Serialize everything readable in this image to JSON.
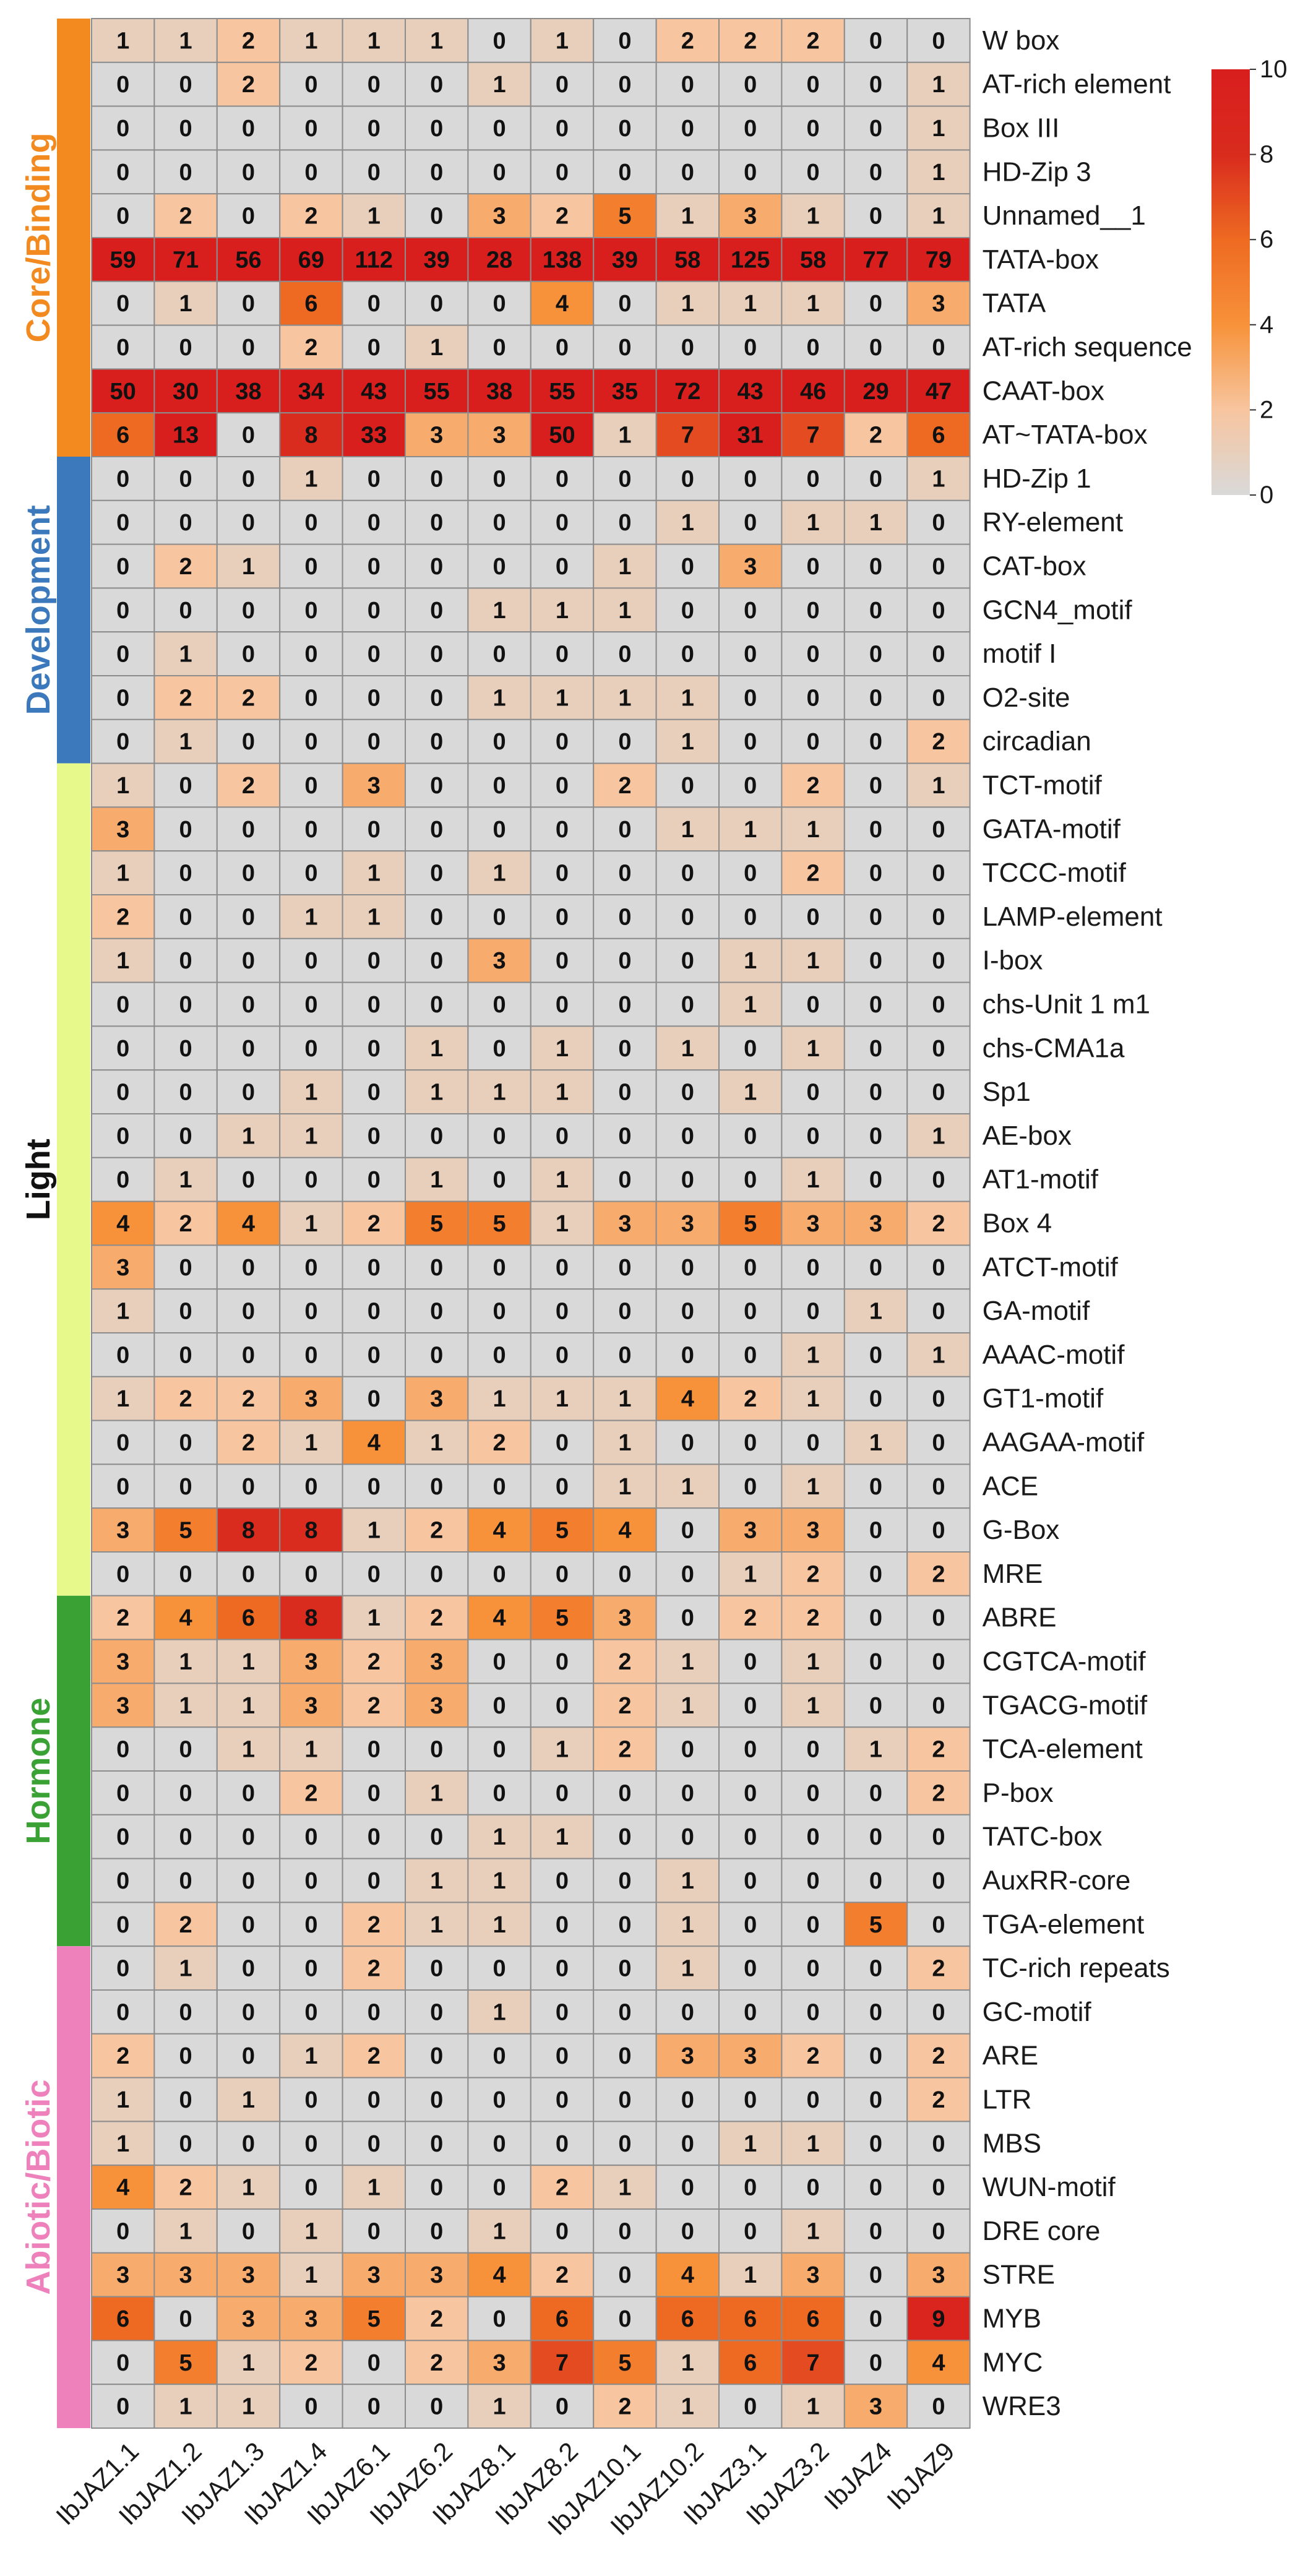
{
  "chart_data": {
    "type": "heatmap",
    "title": "",
    "xlabel": "",
    "ylabel": "",
    "columns": [
      "IbJAZ1.1",
      "IbJAZ1.2",
      "IbJAZ1.3",
      "IbJAZ1.4",
      "IbJAZ6.1",
      "IbJAZ6.2",
      "IbJAZ8.1",
      "IbJAZ8.2",
      "IbJAZ10.1",
      "IbJAZ10.2",
      "IbJAZ3.1",
      "IbJAZ3.2",
      "IbJAZ4",
      "IbJAZ9"
    ],
    "rows": [
      "W box",
      "AT-rich element",
      "Box III",
      "HD-Zip 3",
      "Unnamed__1",
      "TATA-box",
      "TATA",
      "AT-rich sequence",
      "CAAT-box",
      "AT~TATA-box",
      "HD-Zip 1",
      "RY-element",
      "CAT-box",
      "GCN4_motif",
      "motif I",
      "O2-site",
      "circadian",
      "TCT-motif",
      "GATA-motif",
      "TCCC-motif",
      "LAMP-element",
      "I-box",
      "chs-Unit 1 m1",
      "chs-CMA1a",
      "Sp1",
      "AE-box",
      "AT1-motif",
      "Box 4",
      "ATCT-motif",
      "GA-motif",
      "AAAC-motif",
      "GT1-motif",
      "AAGAA-motif",
      "ACE",
      "G-Box",
      "MRE",
      "ABRE",
      "CGTCA-motif",
      "TGACG-motif",
      "TCA-element",
      "P-box",
      "TATC-box",
      "AuxRR-core",
      "TGA-element",
      "TC-rich repeats",
      "GC-motif",
      "ARE",
      "LTR",
      "MBS",
      "WUN-motif",
      "DRE core",
      "STRE",
      "MYB",
      "MYC",
      "WRE3"
    ],
    "values": [
      [
        1,
        1,
        2,
        1,
        1,
        1,
        0,
        1,
        0,
        2,
        2,
        2,
        0,
        0
      ],
      [
        0,
        0,
        2,
        0,
        0,
        0,
        1,
        0,
        0,
        0,
        0,
        0,
        0,
        1
      ],
      [
        0,
        0,
        0,
        0,
        0,
        0,
        0,
        0,
        0,
        0,
        0,
        0,
        0,
        1
      ],
      [
        0,
        0,
        0,
        0,
        0,
        0,
        0,
        0,
        0,
        0,
        0,
        0,
        0,
        1
      ],
      [
        0,
        2,
        0,
        2,
        1,
        0,
        3,
        2,
        5,
        1,
        3,
        1,
        0,
        1
      ],
      [
        59,
        71,
        56,
        69,
        112,
        39,
        28,
        138,
        39,
        58,
        125,
        58,
        77,
        79
      ],
      [
        0,
        1,
        0,
        6,
        0,
        0,
        0,
        4,
        0,
        1,
        1,
        1,
        0,
        3
      ],
      [
        0,
        0,
        0,
        2,
        0,
        1,
        0,
        0,
        0,
        0,
        0,
        0,
        0,
        0
      ],
      [
        50,
        30,
        38,
        34,
        43,
        55,
        38,
        55,
        35,
        72,
        43,
        46,
        29,
        47
      ],
      [
        6,
        13,
        0,
        8,
        33,
        3,
        3,
        50,
        1,
        7,
        31,
        7,
        2,
        6
      ],
      [
        0,
        0,
        0,
        1,
        0,
        0,
        0,
        0,
        0,
        0,
        0,
        0,
        0,
        1
      ],
      [
        0,
        0,
        0,
        0,
        0,
        0,
        0,
        0,
        0,
        1,
        0,
        1,
        1,
        0
      ],
      [
        0,
        2,
        1,
        0,
        0,
        0,
        0,
        0,
        1,
        0,
        3,
        0,
        0,
        0
      ],
      [
        0,
        0,
        0,
        0,
        0,
        0,
        1,
        1,
        1,
        0,
        0,
        0,
        0,
        0
      ],
      [
        0,
        1,
        0,
        0,
        0,
        0,
        0,
        0,
        0,
        0,
        0,
        0,
        0,
        0
      ],
      [
        0,
        2,
        2,
        0,
        0,
        0,
        1,
        1,
        1,
        1,
        0,
        0,
        0,
        0
      ],
      [
        0,
        1,
        0,
        0,
        0,
        0,
        0,
        0,
        0,
        1,
        0,
        0,
        0,
        2
      ],
      [
        1,
        0,
        2,
        0,
        3,
        0,
        0,
        0,
        2,
        0,
        0,
        2,
        0,
        1
      ],
      [
        3,
        0,
        0,
        0,
        0,
        0,
        0,
        0,
        0,
        1,
        1,
        1,
        0,
        0
      ],
      [
        1,
        0,
        0,
        0,
        1,
        0,
        1,
        0,
        0,
        0,
        0,
        2,
        0,
        0
      ],
      [
        2,
        0,
        0,
        1,
        1,
        0,
        0,
        0,
        0,
        0,
        0,
        0,
        0,
        0
      ],
      [
        1,
        0,
        0,
        0,
        0,
        0,
        3,
        0,
        0,
        0,
        1,
        1,
        0,
        0
      ],
      [
        0,
        0,
        0,
        0,
        0,
        0,
        0,
        0,
        0,
        0,
        1,
        0,
        0,
        0
      ],
      [
        0,
        0,
        0,
        0,
        0,
        1,
        0,
        1,
        0,
        1,
        0,
        1,
        0,
        0
      ],
      [
        0,
        0,
        0,
        1,
        0,
        1,
        1,
        1,
        0,
        0,
        1,
        0,
        0,
        0
      ],
      [
        0,
        0,
        1,
        1,
        0,
        0,
        0,
        0,
        0,
        0,
        0,
        0,
        0,
        1
      ],
      [
        0,
        1,
        0,
        0,
        0,
        1,
        0,
        1,
        0,
        0,
        0,
        1,
        0,
        0
      ],
      [
        4,
        2,
        4,
        1,
        2,
        5,
        5,
        1,
        3,
        3,
        5,
        3,
        3,
        2
      ],
      [
        3,
        0,
        0,
        0,
        0,
        0,
        0,
        0,
        0,
        0,
        0,
        0,
        0,
        0
      ],
      [
        1,
        0,
        0,
        0,
        0,
        0,
        0,
        0,
        0,
        0,
        0,
        0,
        1,
        0
      ],
      [
        0,
        0,
        0,
        0,
        0,
        0,
        0,
        0,
        0,
        0,
        0,
        1,
        0,
        1
      ],
      [
        1,
        2,
        2,
        3,
        0,
        3,
        1,
        1,
        1,
        4,
        2,
        1,
        0,
        0
      ],
      [
        0,
        0,
        2,
        1,
        4,
        1,
        2,
        0,
        1,
        0,
        0,
        0,
        1,
        0
      ],
      [
        0,
        0,
        0,
        0,
        0,
        0,
        0,
        0,
        1,
        1,
        0,
        1,
        0,
        0
      ],
      [
        3,
        5,
        8,
        8,
        1,
        2,
        4,
        5,
        4,
        0,
        3,
        3,
        0,
        0
      ],
      [
        0,
        0,
        0,
        0,
        0,
        0,
        0,
        0,
        0,
        0,
        1,
        2,
        0,
        2
      ],
      [
        2,
        4,
        6,
        8,
        1,
        2,
        4,
        5,
        3,
        0,
        2,
        2,
        0,
        0
      ],
      [
        3,
        1,
        1,
        3,
        2,
        3,
        0,
        0,
        2,
        1,
        0,
        1,
        0,
        0
      ],
      [
        3,
        1,
        1,
        3,
        2,
        3,
        0,
        0,
        2,
        1,
        0,
        1,
        0,
        0
      ],
      [
        0,
        0,
        1,
        1,
        0,
        0,
        0,
        1,
        2,
        0,
        0,
        0,
        1,
        2
      ],
      [
        0,
        0,
        0,
        2,
        0,
        1,
        0,
        0,
        0,
        0,
        0,
        0,
        0,
        2
      ],
      [
        0,
        0,
        0,
        0,
        0,
        0,
        1,
        1,
        0,
        0,
        0,
        0,
        0,
        0
      ],
      [
        0,
        0,
        0,
        0,
        0,
        1,
        1,
        0,
        0,
        1,
        0,
        0,
        0,
        0
      ],
      [
        0,
        2,
        0,
        0,
        2,
        1,
        1,
        0,
        0,
        1,
        0,
        0,
        5,
        0
      ],
      [
        0,
        1,
        0,
        0,
        2,
        0,
        0,
        0,
        0,
        1,
        0,
        0,
        0,
        2
      ],
      [
        0,
        0,
        0,
        0,
        0,
        0,
        1,
        0,
        0,
        0,
        0,
        0,
        0,
        0
      ],
      [
        2,
        0,
        0,
        1,
        2,
        0,
        0,
        0,
        0,
        3,
        3,
        2,
        0,
        2
      ],
      [
        1,
        0,
        1,
        0,
        0,
        0,
        0,
        0,
        0,
        0,
        0,
        0,
        0,
        2
      ],
      [
        1,
        0,
        0,
        0,
        0,
        0,
        0,
        0,
        0,
        0,
        1,
        1,
        0,
        0
      ],
      [
        4,
        2,
        1,
        0,
        1,
        0,
        0,
        2,
        1,
        0,
        0,
        0,
        0,
        0
      ],
      [
        0,
        1,
        0,
        1,
        0,
        0,
        1,
        0,
        0,
        0,
        0,
        1,
        0,
        0
      ],
      [
        3,
        3,
        3,
        1,
        3,
        3,
        4,
        2,
        0,
        4,
        1,
        3,
        0,
        3
      ],
      [
        6,
        0,
        3,
        3,
        5,
        2,
        0,
        6,
        0,
        6,
        6,
        6,
        0,
        9
      ],
      [
        0,
        5,
        1,
        2,
        0,
        2,
        3,
        7,
        5,
        1,
        6,
        7,
        0,
        4
      ],
      [
        0,
        1,
        1,
        0,
        0,
        0,
        1,
        0,
        2,
        1,
        0,
        1,
        3,
        0
      ]
    ],
    "groups": [
      {
        "name": "Core/Binding",
        "start": 0,
        "end": 9,
        "color": "#f28a1f"
      },
      {
        "name": "Development",
        "start": 10,
        "end": 16,
        "color": "#3b78bc"
      },
      {
        "name": "Light",
        "start": 17,
        "end": 35,
        "color": "#e7f98a",
        "text_color": "#111111"
      },
      {
        "name": "Hormone",
        "start": 36,
        "end": 43,
        "color": "#3aa134"
      },
      {
        "name": "Abiotic/Biotic",
        "start": 44,
        "end": 54,
        "color": "#ee80bb"
      }
    ],
    "color_scale": {
      "min": 0,
      "max": 10,
      "ticks": [
        0,
        2,
        4,
        6,
        8,
        10
      ],
      "stops": [
        "#d9d9d9",
        "#f7c59f",
        "#f7923a",
        "#ee6a22",
        "#d92b1e",
        "#d91e1e"
      ]
    }
  }
}
